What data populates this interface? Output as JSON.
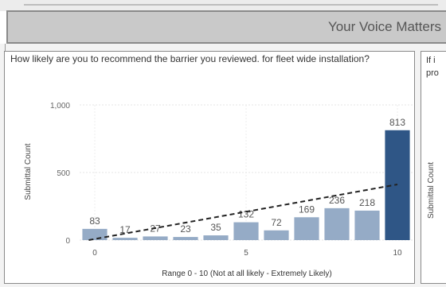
{
  "header": {
    "banner_title": "Your Voice Matters"
  },
  "right_panel": {
    "question_fragment": "If i\npro",
    "ylabel": "Submittal Count"
  },
  "chart_data": {
    "type": "bar",
    "title": "How likely are you to recommend the barrier you reviewed. for fleet wide installation?",
    "xlabel": "Range 0 - 10 (Not at all likely - Extremely Likely)",
    "ylabel": "Submittal Count",
    "categories": [
      0,
      1,
      2,
      3,
      4,
      5,
      6,
      7,
      8,
      9,
      10
    ],
    "values": [
      83,
      17,
      27,
      23,
      35,
      132,
      72,
      169,
      236,
      218,
      813
    ],
    "x_ticks": [
      "0",
      "5",
      "10"
    ],
    "y_ticks": [
      "0",
      "500",
      "1,000"
    ],
    "ylim": [
      0,
      1000
    ],
    "trendline": {
      "style": "dashed",
      "color": "#222222"
    },
    "bar_colors": {
      "default": "#95abc6",
      "highlight": "#2f5686"
    },
    "grid": true,
    "legend": "none"
  }
}
